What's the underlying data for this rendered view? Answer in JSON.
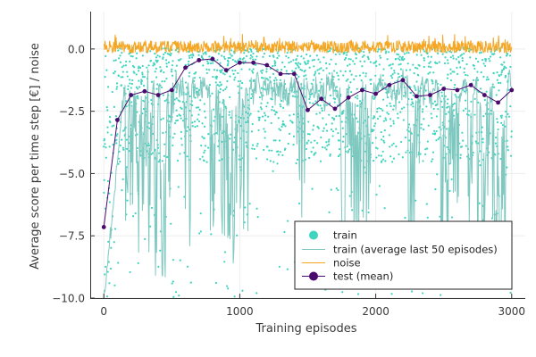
{
  "chart_data": {
    "type": "line",
    "title": "",
    "xlabel": "Training episodes",
    "ylabel": "Average score per time step [€] / noise",
    "xlim": [
      -100,
      3100
    ],
    "ylim": [
      -10,
      1.5
    ],
    "xticks": [
      0,
      1000,
      2000,
      3000
    ],
    "xtick_labels": [
      "0",
      "1000",
      "2000",
      "3000"
    ],
    "yticks": [
      0,
      -2.5,
      -5,
      -7.5,
      -10
    ],
    "ytick_labels": [
      "0.0",
      "−2.5",
      "−5.0",
      "−7.5",
      "−10.0"
    ],
    "grid": true,
    "legend_position": "bottom-right",
    "series": [
      {
        "name": "train",
        "style": "scatter",
        "color": "#3fd4bd",
        "note": "one point per training episode, episodes 0–3000; values mostly between −4.5 and 0, sparse outliers down to −10"
      },
      {
        "name": "train (average last 50 episodes)",
        "style": "line",
        "color": "#7fc8c0",
        "note": "rolling 50-episode mean; starts near −10, rises to about −1.5 by episode 150, then mostly −1 to −2 with deep dips to −10 around episodes 150–500, 800–1050, 1750–1950 and 2250–2950"
      },
      {
        "name": "noise",
        "style": "line",
        "color": "#f5a623",
        "note": "exploration noise per episode, fluctuating between about −0.3 and 0.5"
      },
      {
        "name": "test (mean)",
        "style": "line+marker",
        "color": "#4b0a6e",
        "x": [
          0,
          100,
          200,
          300,
          400,
          500,
          600,
          700,
          800,
          900,
          1000,
          1100,
          1200,
          1300,
          1400,
          1500,
          1600,
          1700,
          1800,
          1900,
          2000,
          2100,
          2200,
          2300,
          2400,
          2500,
          2600,
          2700,
          2800,
          2900,
          3000
        ],
        "values": [
          -7.15,
          -2.85,
          -1.85,
          -1.7,
          -1.85,
          -1.65,
          -0.75,
          -0.45,
          -0.4,
          -0.85,
          -0.55,
          -0.55,
          -0.65,
          -1.0,
          -1.0,
          -2.45,
          -2.0,
          -2.4,
          -1.95,
          -1.65,
          -1.8,
          -1.45,
          -1.25,
          -1.9,
          -1.85,
          -1.6,
          -1.65,
          -1.45,
          -1.85,
          -2.15,
          -1.65
        ]
      }
    ]
  }
}
